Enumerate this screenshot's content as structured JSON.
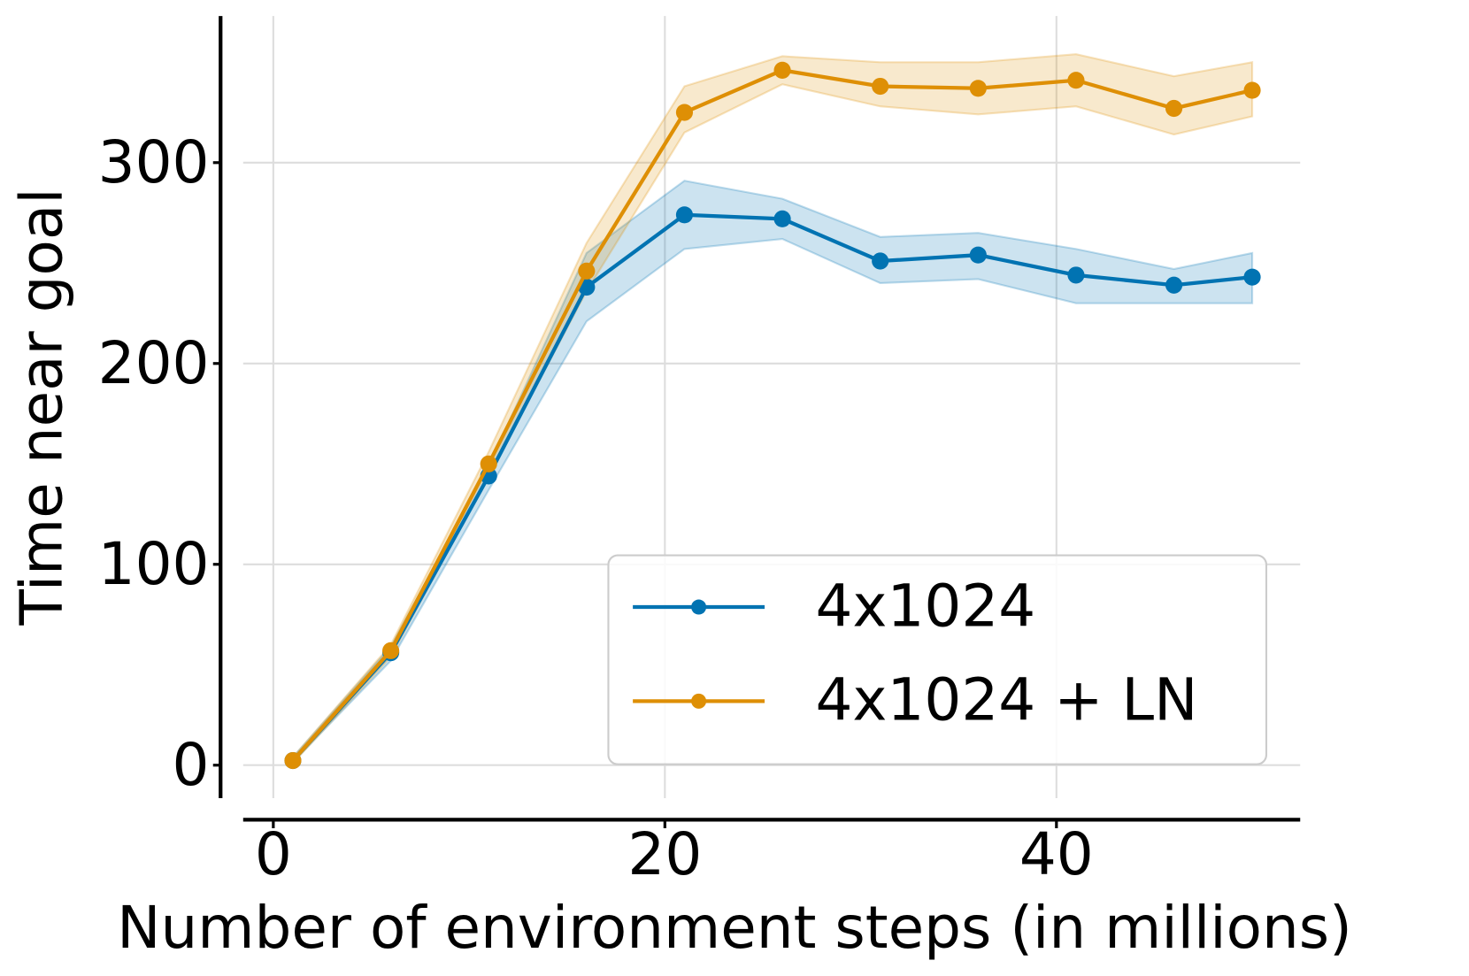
{
  "chart_data": {
    "type": "line",
    "xlabel": "Number of environment steps (in millions)",
    "ylabel": "Time near goal",
    "x": [
      1,
      6,
      11,
      16,
      21,
      26,
      31,
      36,
      41,
      46,
      50
    ],
    "series": [
      {
        "name": "4x1024",
        "color": "#0173b2",
        "values": [
          2.3,
          56,
          144,
          238,
          274,
          272,
          251,
          254,
          244,
          239,
          243
        ],
        "upper": [
          4,
          59,
          149,
          255,
          291,
          282,
          263,
          265,
          257,
          247,
          255
        ],
        "lower": [
          1.5,
          52,
          137,
          221,
          257,
          262,
          240,
          242,
          230,
          230,
          230
        ]
      },
      {
        "name": "4x1024 + LN",
        "color": "#de8f05",
        "values": [
          2.3,
          57,
          150,
          246,
          325,
          346,
          338,
          337,
          341,
          327,
          336
        ],
        "upper": [
          4,
          60,
          156,
          260,
          338,
          353,
          350,
          350,
          354,
          343,
          350
        ],
        "lower": [
          1,
          54,
          144,
          236,
          315,
          339,
          328,
          324,
          328,
          314,
          323
        ]
      }
    ],
    "xlim": [
      -1.54,
      52.45
    ],
    "ylim": [
      -16.4,
      373
    ],
    "xticks": [
      0,
      20,
      40
    ],
    "yticks": [
      0,
      100,
      200,
      300
    ],
    "grid": true,
    "legend": "lower right"
  }
}
